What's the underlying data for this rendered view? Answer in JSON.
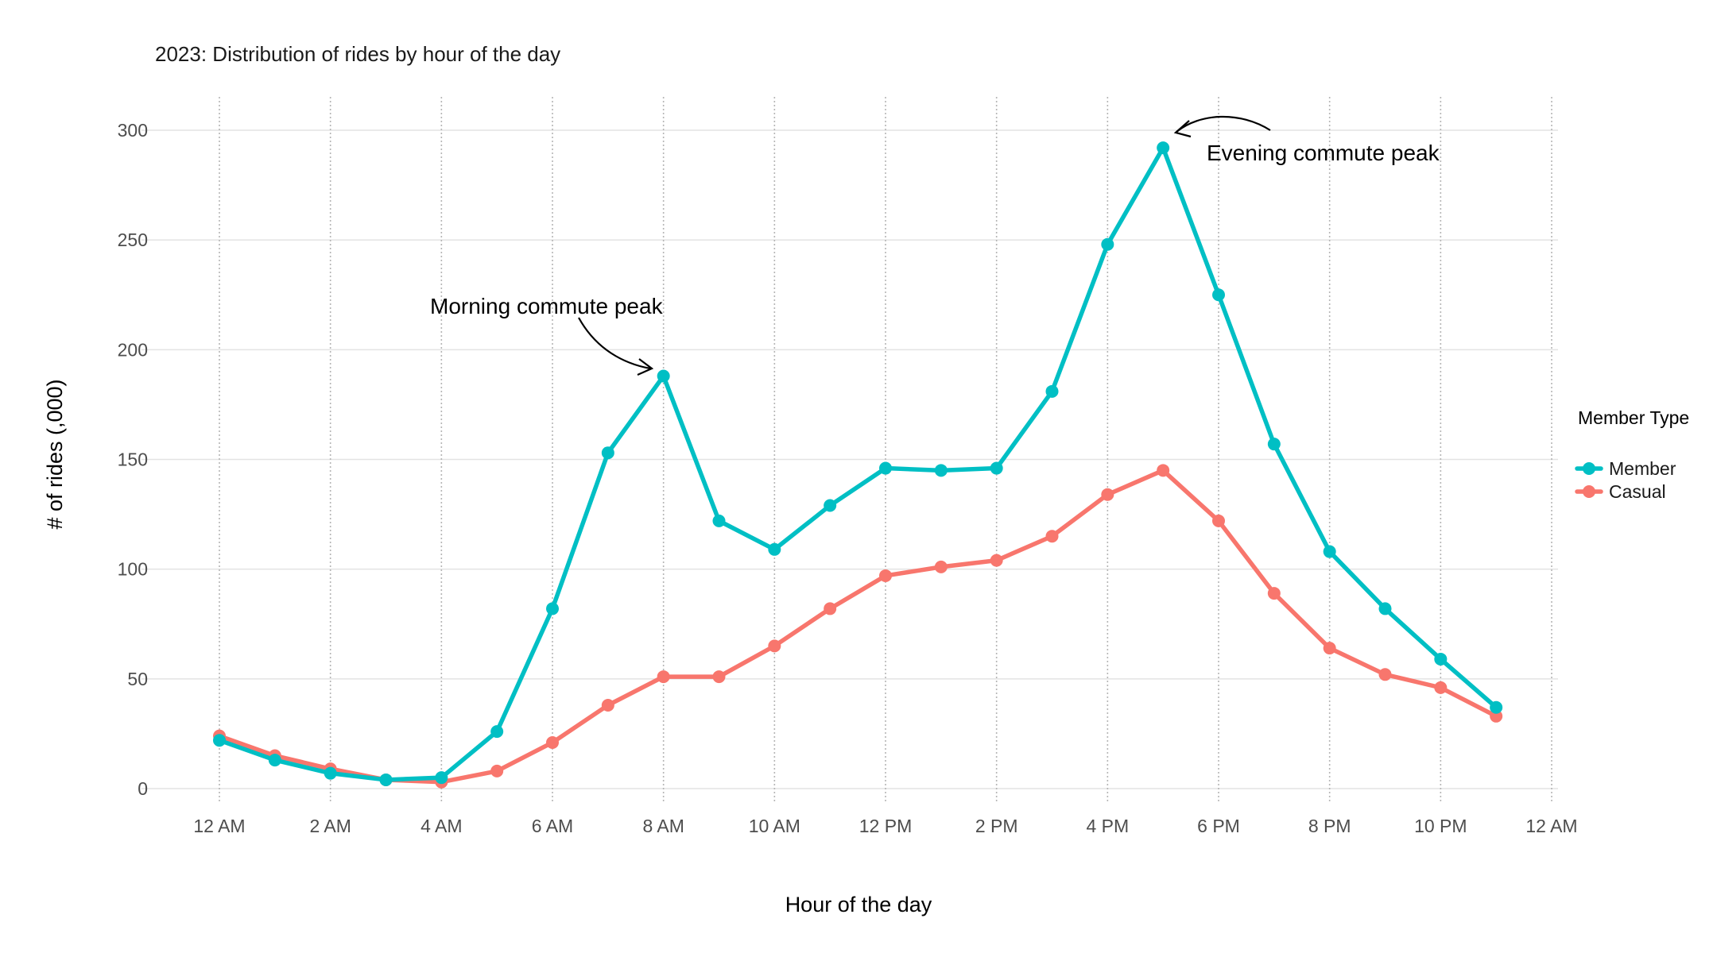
{
  "chart_data": {
    "type": "line",
    "title": "2023: Distribution of rides by hour of the day",
    "xlabel": "Hour of the day",
    "ylabel": "# of rides (,000)",
    "x": [
      0,
      1,
      2,
      3,
      4,
      5,
      6,
      7,
      8,
      9,
      10,
      11,
      12,
      13,
      14,
      15,
      16,
      17,
      18,
      19,
      20,
      21,
      22,
      23
    ],
    "xlim": [
      0,
      24
    ],
    "ylim": [
      0,
      300
    ],
    "x_ticks": [
      {
        "value": 0,
        "label": "12 AM"
      },
      {
        "value": 2,
        "label": "2 AM"
      },
      {
        "value": 4,
        "label": "4 AM"
      },
      {
        "value": 6,
        "label": "6 AM"
      },
      {
        "value": 8,
        "label": "8 AM"
      },
      {
        "value": 10,
        "label": "10 AM"
      },
      {
        "value": 12,
        "label": "12 PM"
      },
      {
        "value": 14,
        "label": "2 PM"
      },
      {
        "value": 16,
        "label": "4 PM"
      },
      {
        "value": 18,
        "label": "6 PM"
      },
      {
        "value": 20,
        "label": "8 PM"
      },
      {
        "value": 22,
        "label": "10 PM"
      },
      {
        "value": 24,
        "label": "12 AM"
      }
    ],
    "y_ticks": [
      0,
      50,
      100,
      150,
      200,
      250,
      300
    ],
    "grid": true,
    "legend": {
      "title": "Member Type",
      "position": "right"
    },
    "series": [
      {
        "name": "Member",
        "color": "#00BFC4",
        "values": [
          22,
          13,
          7,
          4,
          5,
          26,
          82,
          153,
          188,
          122,
          109,
          129,
          146,
          145,
          146,
          181,
          248,
          292,
          225,
          157,
          108,
          82,
          59,
          37
        ]
      },
      {
        "name": "Casual",
        "color": "#F8766D",
        "values": [
          24,
          15,
          9,
          4,
          3,
          8,
          21,
          38,
          51,
          51,
          65,
          82,
          97,
          101,
          104,
          115,
          134,
          145,
          122,
          89,
          64,
          52,
          46,
          33
        ]
      }
    ],
    "annotations": [
      {
        "text": "Morning commute peak",
        "x": 8,
        "y": 188
      },
      {
        "text": "Evening commute peak",
        "x": 17,
        "y": 292
      }
    ]
  }
}
